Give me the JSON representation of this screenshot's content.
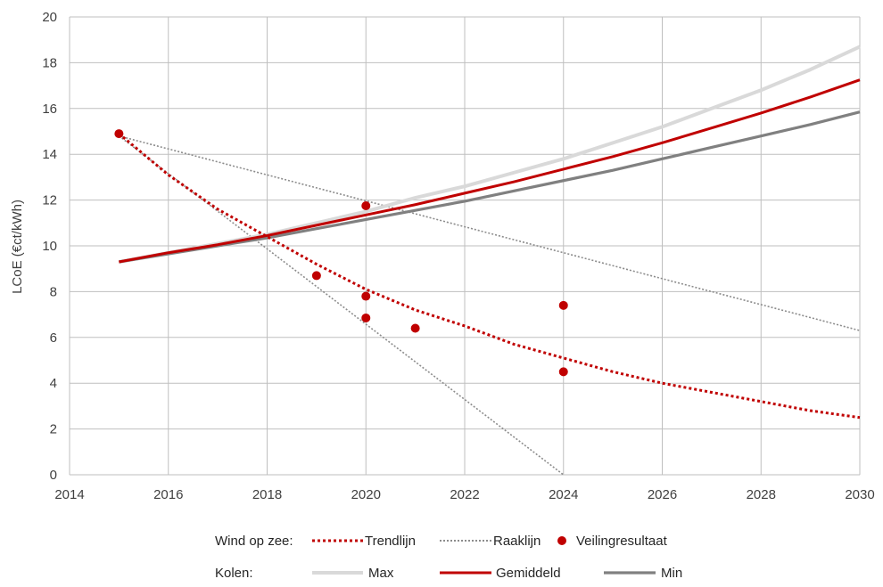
{
  "chart_data": {
    "type": "line",
    "xlabel": "",
    "ylabel": "LCoE (€ct/kWh)",
    "xlim": [
      2014,
      2030
    ],
    "ylim": [
      0,
      20
    ],
    "x_ticks": [
      "2014",
      "2016",
      "2018",
      "2020",
      "2022",
      "2024",
      "2026",
      "2028",
      "2030"
    ],
    "y_ticks": [
      "0",
      "2",
      "4",
      "6",
      "8",
      "10",
      "12",
      "14",
      "16",
      "18",
      "20"
    ],
    "grid": true,
    "legend_position": "bottom",
    "legend_groups": [
      {
        "label": "Wind op zee:",
        "entries": [
          "Trendlijn",
          "Raaklijn",
          "Veilingresultaat"
        ]
      },
      {
        "label": "Kolen:",
        "entries": [
          "Max",
          "Gemiddeld",
          "Min"
        ]
      }
    ],
    "series": [
      {
        "name": "Trendlijn",
        "style": "dotted",
        "color": "#c00000",
        "x": [
          2015,
          2016,
          2017,
          2018,
          2019,
          2020,
          2021,
          2022,
          2023,
          2024,
          2025,
          2026,
          2027,
          2028,
          2029,
          2030
        ],
        "y": [
          14.9,
          13.1,
          11.6,
          10.4,
          9.2,
          8.1,
          7.2,
          6.5,
          5.7,
          5.1,
          4.5,
          4.0,
          3.6,
          3.2,
          2.8,
          2.5
        ]
      },
      {
        "name": "Raaklijn",
        "style": "dotted",
        "color": "#8c8c8c",
        "segments": [
          {
            "x": [
              2015,
              2030
            ],
            "y": [
              14.8,
              6.3
            ]
          },
          {
            "x": [
              2015,
              2024
            ],
            "y": [
              14.8,
              0.0
            ]
          }
        ]
      },
      {
        "name": "Veilingresultaat",
        "style": "scatter",
        "color": "#c00000",
        "points": [
          [
            2015,
            14.9
          ],
          [
            2019,
            8.7
          ],
          [
            2020,
            11.75
          ],
          [
            2020,
            7.8
          ],
          [
            2020,
            6.85
          ],
          [
            2021,
            6.4
          ],
          [
            2024,
            7.4
          ],
          [
            2024,
            4.5
          ]
        ]
      },
      {
        "name": "Max",
        "style": "solid",
        "color": "#d9d9d9",
        "x": [
          2015,
          2016,
          2017,
          2018,
          2019,
          2020,
          2021,
          2022,
          2023,
          2024,
          2025,
          2026,
          2027,
          2028,
          2029,
          2030
        ],
        "y": [
          9.3,
          9.7,
          10.1,
          10.5,
          11.0,
          11.5,
          12.1,
          12.6,
          13.2,
          13.8,
          14.5,
          15.2,
          16.0,
          16.8,
          17.7,
          18.7
        ]
      },
      {
        "name": "Gemiddeld",
        "style": "solid",
        "color": "#c00000",
        "x": [
          2015,
          2016,
          2017,
          2018,
          2019,
          2020,
          2021,
          2022,
          2023,
          2024,
          2025,
          2026,
          2027,
          2028,
          2029,
          2030
        ],
        "y": [
          9.3,
          9.7,
          10.05,
          10.45,
          10.9,
          11.35,
          11.8,
          12.3,
          12.8,
          13.35,
          13.9,
          14.5,
          15.15,
          15.8,
          16.5,
          17.25
        ]
      },
      {
        "name": "Min",
        "style": "solid",
        "color": "#808080",
        "x": [
          2015,
          2016,
          2017,
          2018,
          2019,
          2020,
          2021,
          2022,
          2023,
          2024,
          2025,
          2026,
          2027,
          2028,
          2029,
          2030
        ],
        "y": [
          9.3,
          9.65,
          10.0,
          10.35,
          10.75,
          11.15,
          11.55,
          11.95,
          12.4,
          12.85,
          13.3,
          13.8,
          14.3,
          14.8,
          15.3,
          15.85
        ]
      }
    ]
  }
}
